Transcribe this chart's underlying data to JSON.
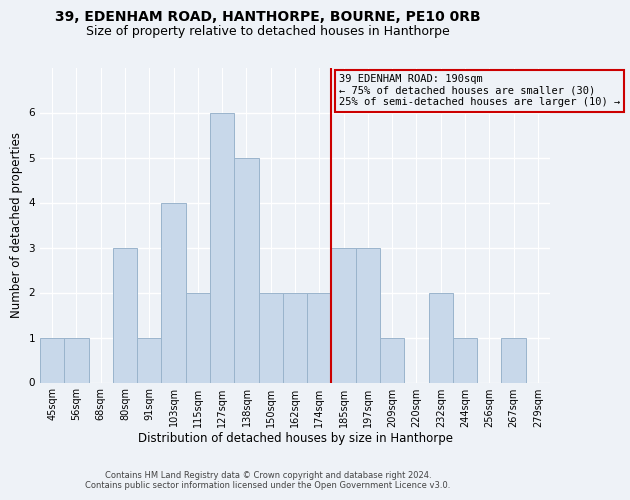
{
  "title": "39, EDENHAM ROAD, HANTHORPE, BOURNE, PE10 0RB",
  "subtitle": "Size of property relative to detached houses in Hanthorpe",
  "xlabel": "Distribution of detached houses by size in Hanthorpe",
  "ylabel": "Number of detached properties",
  "categories": [
    "45sqm",
    "56sqm",
    "68sqm",
    "80sqm",
    "91sqm",
    "103sqm",
    "115sqm",
    "127sqm",
    "138sqm",
    "150sqm",
    "162sqm",
    "174sqm",
    "185sqm",
    "197sqm",
    "209sqm",
    "220sqm",
    "232sqm",
    "244sqm",
    "256sqm",
    "267sqm",
    "279sqm"
  ],
  "values": [
    1,
    1,
    0,
    3,
    1,
    4,
    2,
    6,
    5,
    2,
    2,
    2,
    3,
    3,
    1,
    0,
    2,
    1,
    0,
    1,
    0
  ],
  "bar_color": "#c8d8ea",
  "bar_edgecolor": "#9ab4cc",
  "vline_color": "#cc0000",
  "annotation_text": "39 EDENHAM ROAD: 190sqm\n← 75% of detached houses are smaller (30)\n25% of semi-detached houses are larger (10) →",
  "annotation_box_color": "#cc0000",
  "ylim": [
    0,
    7
  ],
  "yticks": [
    0,
    1,
    2,
    3,
    4,
    5,
    6
  ],
  "footer_text": "Contains HM Land Registry data © Crown copyright and database right 2024.\nContains public sector information licensed under the Open Government Licence v3.0.",
  "background_color": "#eef2f7",
  "grid_color": "#ffffff",
  "title_fontsize": 10,
  "subtitle_fontsize": 9,
  "axis_label_fontsize": 8.5,
  "tick_fontsize": 7,
  "annotation_fontsize": 7.5,
  "footer_fontsize": 6
}
